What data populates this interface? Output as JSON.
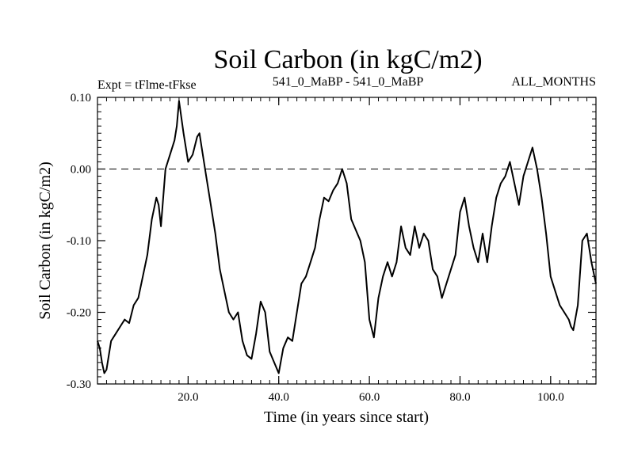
{
  "chart_data": {
    "type": "line",
    "title": "Soil Carbon (in kgC/m2)",
    "subtitle_left": "Expt = tFlme-tFkse",
    "subtitle_center": "541_0_MaBP - 541_0_MaBP",
    "subtitle_right": "ALL_MONTHS",
    "xlabel": "Time (in years since start)",
    "ylabel": "Soil Carbon (in kgC/m2)",
    "xlim": [
      0,
      110
    ],
    "ylim": [
      -0.3,
      0.1
    ],
    "x_ticks": [
      {
        "value": 20,
        "label": "20.0"
      },
      {
        "value": 40,
        "label": "40.0"
      },
      {
        "value": 60,
        "label": "60.0"
      },
      {
        "value": 80,
        "label": "80.0"
      },
      {
        "value": 100,
        "label": "100.0"
      }
    ],
    "y_ticks": [
      {
        "value": 0.1,
        "label": "0.10"
      },
      {
        "value": 0.0,
        "label": "0.00"
      },
      {
        "value": -0.1,
        "label": "-0.10"
      },
      {
        "value": -0.2,
        "label": "-0.20"
      },
      {
        "value": -0.3,
        "label": "-0.30"
      }
    ],
    "reference_line": {
      "value": 0.0,
      "style": "dashed"
    },
    "series": [
      {
        "name": "Soil Carbon",
        "color": "#000000",
        "x": [
          0,
          0.5,
          1,
          1.5,
          2,
          3,
          4,
          5,
          6,
          7,
          8,
          9,
          10,
          11,
          12,
          13,
          13.5,
          14,
          15,
          16,
          17,
          17.5,
          18,
          19,
          20,
          21,
          22,
          22.5,
          23,
          24,
          25,
          26,
          27,
          28,
          29,
          30,
          31,
          32,
          33,
          34,
          35,
          36,
          37,
          38,
          39,
          40,
          41,
          42,
          43,
          44,
          45,
          46,
          47,
          48,
          49,
          50,
          51,
          52,
          53,
          54,
          55,
          56,
          57,
          58,
          59,
          60,
          61,
          62,
          63,
          64,
          65,
          66,
          67,
          68,
          69,
          70,
          71,
          72,
          73,
          74,
          75,
          76,
          77,
          78,
          79,
          80,
          81,
          82,
          83,
          84,
          85,
          86,
          87,
          88,
          89,
          90,
          91,
          92,
          93,
          94,
          95,
          96,
          97,
          98,
          99,
          100,
          101,
          102,
          103,
          104,
          104.5,
          105,
          106,
          107,
          108,
          109,
          110
        ],
        "values": [
          -0.24,
          -0.25,
          -0.27,
          -0.285,
          -0.28,
          -0.24,
          -0.23,
          -0.22,
          -0.21,
          -0.215,
          -0.19,
          -0.18,
          -0.15,
          -0.12,
          -0.07,
          -0.04,
          -0.05,
          -0.08,
          0.0,
          0.02,
          0.04,
          0.06,
          0.095,
          0.05,
          0.01,
          0.02,
          0.045,
          0.05,
          0.03,
          -0.01,
          -0.05,
          -0.09,
          -0.14,
          -0.17,
          -0.2,
          -0.21,
          -0.2,
          -0.24,
          -0.26,
          -0.265,
          -0.23,
          -0.185,
          -0.2,
          -0.255,
          -0.27,
          -0.285,
          -0.25,
          -0.235,
          -0.24,
          -0.2,
          -0.16,
          -0.15,
          -0.13,
          -0.11,
          -0.07,
          -0.04,
          -0.045,
          -0.03,
          -0.02,
          0.0,
          -0.02,
          -0.07,
          -0.085,
          -0.1,
          -0.13,
          -0.21,
          -0.235,
          -0.18,
          -0.15,
          -0.13,
          -0.15,
          -0.13,
          -0.08,
          -0.11,
          -0.12,
          -0.08,
          -0.11,
          -0.09,
          -0.1,
          -0.14,
          -0.15,
          -0.18,
          -0.16,
          -0.14,
          -0.12,
          -0.06,
          -0.04,
          -0.08,
          -0.11,
          -0.13,
          -0.09,
          -0.13,
          -0.08,
          -0.04,
          -0.02,
          -0.01,
          0.01,
          -0.02,
          -0.05,
          -0.01,
          0.01,
          0.03,
          0.0,
          -0.04,
          -0.09,
          -0.15,
          -0.17,
          -0.19,
          -0.2,
          -0.21,
          -0.22,
          -0.225,
          -0.19,
          -0.1,
          -0.09,
          -0.13,
          -0.16
        ]
      }
    ]
  }
}
